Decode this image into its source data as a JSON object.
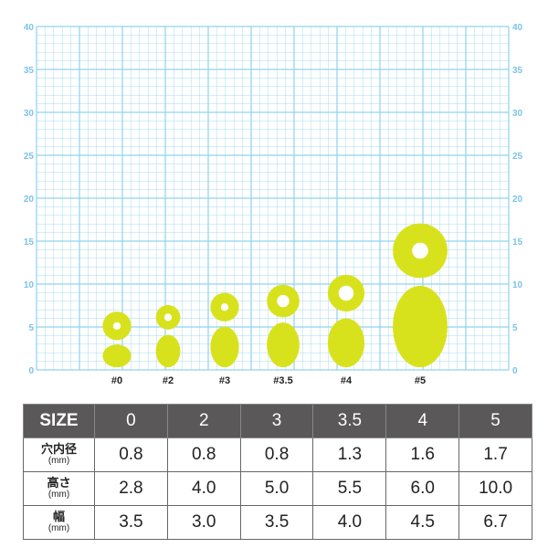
{
  "chart": {
    "y_ticks": [
      "0",
      "5",
      "10",
      "15",
      "20",
      "25",
      "30",
      "35",
      "40"
    ],
    "bead_color": "#d8e21c",
    "grid_color": "#8fd3ee",
    "sizes": [
      {
        "label": "#0",
        "hole": 0.8,
        "height": 2.8,
        "width": 3.5
      },
      {
        "label": "#2",
        "hole": 0.8,
        "height": 4.0,
        "width": 3.0
      },
      {
        "label": "#3",
        "hole": 0.8,
        "height": 5.0,
        "width": 3.5
      },
      {
        "label": "#3.5",
        "hole": 1.3,
        "height": 5.5,
        "width": 4.0
      },
      {
        "label": "#4",
        "hole": 1.6,
        "height": 6.0,
        "width": 4.5
      },
      {
        "label": "#5",
        "hole": 1.7,
        "height": 10.0,
        "width": 6.7
      }
    ]
  },
  "table": {
    "header": [
      "SIZE",
      "0",
      "2",
      "3",
      "3.5",
      "4",
      "5"
    ],
    "rows": [
      {
        "label": "穴内径",
        "unit": "(mm)",
        "values": [
          "0.8",
          "0.8",
          "0.8",
          "1.3",
          "1.6",
          "1.7"
        ]
      },
      {
        "label": "高さ",
        "unit": "(mm)",
        "values": [
          "2.8",
          "4.0",
          "5.0",
          "5.5",
          "6.0",
          "10.0"
        ]
      },
      {
        "label": "幅",
        "unit": "(mm)",
        "values": [
          "3.5",
          "3.0",
          "3.5",
          "4.0",
          "4.5",
          "6.7"
        ]
      }
    ]
  }
}
